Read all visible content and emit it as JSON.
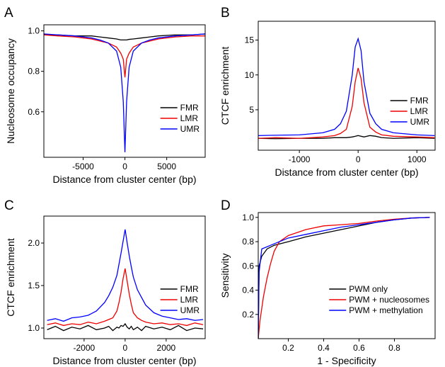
{
  "chart_data": [
    {
      "type": "line",
      "panel_label": "A",
      "x_label": "Distance from cluster center (bp)",
      "y_label": "Nucleosome occupancy",
      "x": [
        -9700,
        -8000,
        -6000,
        -4000,
        -3000,
        -2000,
        -1000,
        -500,
        -200,
        0,
        200,
        500,
        1000,
        2000,
        3000,
        4000,
        6000,
        8000,
        9700
      ],
      "series": [
        {
          "name": "FMR",
          "color": "#000000",
          "values": [
            0.98,
            0.98,
            0.975,
            0.975,
            0.97,
            0.965,
            0.96,
            0.955,
            0.955,
            0.955,
            0.955,
            0.958,
            0.96,
            0.965,
            0.97,
            0.975,
            0.98,
            0.98,
            0.985
          ]
        },
        {
          "name": "LMR",
          "color": "#ee0000",
          "values": [
            0.98,
            0.975,
            0.97,
            0.96,
            0.95,
            0.94,
            0.92,
            0.89,
            0.86,
            0.77,
            0.86,
            0.89,
            0.92,
            0.94,
            0.95,
            0.96,
            0.97,
            0.975,
            0.975
          ]
        },
        {
          "name": "UMR",
          "color": "#0000ff",
          "values": [
            0.985,
            0.98,
            0.975,
            0.965,
            0.955,
            0.94,
            0.9,
            0.82,
            0.65,
            0.4,
            0.65,
            0.82,
            0.9,
            0.94,
            0.955,
            0.965,
            0.975,
            0.98,
            0.985
          ]
        }
      ],
      "xlim": [
        -9700,
        9600
      ],
      "xticks": [
        -5000,
        0,
        5000
      ],
      "ylim": [
        0.375,
        1.03
      ],
      "yticks": [
        0.6,
        0.8,
        {
          "value": 1.0,
          "label": "1.0"
        }
      ],
      "legend": "lower right"
    },
    {
      "type": "line",
      "panel_label": "B",
      "x_label": "Distance from cluster center (bp)",
      "y_label": "CTCF enrichment",
      "x": [
        -1700,
        -1400,
        -1000,
        -600,
        -400,
        -300,
        -200,
        -100,
        -50,
        0,
        50,
        100,
        200,
        300,
        400,
        600,
        1000,
        1300
      ],
      "series": [
        {
          "name": "FMR",
          "color": "#000000",
          "values": [
            0.9,
            0.85,
            0.9,
            0.9,
            1.0,
            1.0,
            1.0,
            1.1,
            1.2,
            1.3,
            1.2,
            1.1,
            1.3,
            1.2,
            1.0,
            0.9,
            1.0,
            0.9
          ]
        },
        {
          "name": "LMR",
          "color": "#ee0000",
          "values": [
            0.9,
            1.0,
            0.9,
            1.1,
            1.3,
            1.6,
            2.2,
            5.5,
            9,
            11,
            9.5,
            6,
            2.5,
            1.8,
            1.4,
            1.2,
            1.1,
            1.0
          ]
        },
        {
          "name": "UMR",
          "color": "#0000ff",
          "values": [
            1.3,
            1.35,
            1.4,
            1.7,
            2.2,
            3.0,
            4.8,
            10,
            14,
            15.2,
            13.5,
            9,
            4.5,
            3.0,
            2.2,
            1.7,
            1.4,
            1.3
          ]
        }
      ],
      "xlim": [
        -1700,
        1310
      ],
      "xticks": [
        -1000,
        0,
        1000
      ],
      "ylim": [
        -0.8,
        17.7
      ],
      "yticks": [
        5,
        10,
        15
      ],
      "legend": "lower right"
    },
    {
      "type": "line",
      "panel_label": "C",
      "x_label": "Distance from cluster center (bp)",
      "y_label": "CTCF enrichment",
      "x": [
        -3800,
        -3400,
        -3000,
        -2600,
        -2200,
        -1800,
        -1400,
        -1000,
        -800,
        -600,
        -400,
        -300,
        -200,
        -100,
        0,
        100,
        200,
        300,
        400,
        600,
        800,
        1000,
        1400,
        1800,
        2200,
        2600,
        3000,
        3400,
        3800
      ],
      "series": [
        {
          "name": "FMR",
          "color": "#000000",
          "values": [
            0.98,
            1.02,
            0.97,
            1.01,
            0.99,
            1.03,
            0.98,
            1.0,
            1.02,
            0.97,
            1.01,
            1.0,
            1.03,
            1.02,
            1.05,
            1.01,
            0.99,
            1.02,
            0.98,
            1.01,
            0.97,
            1.02,
            0.99,
            1.01,
            0.98,
            1.03,
            0.97,
            1.0,
            0.99
          ]
        },
        {
          "name": "LMR",
          "color": "#ee0000",
          "values": [
            1.04,
            1.06,
            1.03,
            1.05,
            1.04,
            1.07,
            1.05,
            1.08,
            1.1,
            1.12,
            1.2,
            1.3,
            1.42,
            1.58,
            1.7,
            1.55,
            1.4,
            1.28,
            1.18,
            1.12,
            1.09,
            1.07,
            1.05,
            1.06,
            1.04,
            1.05,
            1.03,
            1.06,
            1.04
          ]
        },
        {
          "name": "UMR",
          "color": "#0000ff",
          "values": [
            1.09,
            1.11,
            1.08,
            1.12,
            1.13,
            1.15,
            1.2,
            1.3,
            1.38,
            1.48,
            1.62,
            1.75,
            1.88,
            2.02,
            2.16,
            2.0,
            1.85,
            1.72,
            1.6,
            1.45,
            1.36,
            1.27,
            1.18,
            1.14,
            1.12,
            1.1,
            1.11,
            1.09,
            1.1
          ]
        }
      ],
      "xlim": [
        -3960,
        3900
      ],
      "xticks": [
        -2000,
        0,
        2000
      ],
      "ylim": [
        0.875,
        2.317
      ],
      "yticks": [
        {
          "value": 1.0,
          "label": "1.0"
        },
        1.5,
        {
          "value": 2.0,
          "label": "2.0"
        }
      ],
      "legend": "lower right"
    },
    {
      "type": "line",
      "panel_label": "D",
      "x_label": "1 - Specificity",
      "y_label": "Sensitivity",
      "series": [
        {
          "name": "PWM only",
          "color": "#000000",
          "x": [
            0.03,
            0.035,
            0.05,
            0.08,
            0.12,
            0.2,
            0.3,
            0.4,
            0.5,
            0.6,
            0.7,
            0.8,
            0.9,
            1.0
          ],
          "values": [
            0.0,
            0.6,
            0.68,
            0.74,
            0.77,
            0.8,
            0.84,
            0.87,
            0.9,
            0.93,
            0.96,
            0.98,
            0.995,
            1.0
          ]
        },
        {
          "name": "PWM + nucleosomes",
          "color": "#ee0000",
          "x": [
            0.03,
            0.04,
            0.06,
            0.08,
            0.1,
            0.12,
            0.15,
            0.2,
            0.3,
            0.4,
            0.5,
            0.6,
            0.7,
            0.8,
            0.9,
            1.0
          ],
          "values": [
            0.0,
            0.15,
            0.35,
            0.5,
            0.62,
            0.72,
            0.8,
            0.85,
            0.9,
            0.93,
            0.94,
            0.95,
            0.97,
            0.985,
            0.995,
            1.0
          ]
        },
        {
          "name": "PWM + methylation",
          "color": "#0000ff",
          "x": [
            0.03,
            0.035,
            0.05,
            0.1,
            0.15,
            0.2,
            0.3,
            0.4,
            0.5,
            0.6,
            0.7,
            0.8,
            0.9,
            1.0
          ],
          "values": [
            0.0,
            0.55,
            0.74,
            0.77,
            0.8,
            0.83,
            0.86,
            0.89,
            0.92,
            0.94,
            0.96,
            0.98,
            0.995,
            1.0
          ]
        }
      ],
      "xlim": [
        0.03,
        1.03
      ],
      "xticks": [
        0.2,
        0.4,
        0.6,
        0.8
      ],
      "ylim": [
        0,
        1.04
      ],
      "yticks": [
        0.2,
        0.4,
        0.6,
        0.8,
        {
          "value": 1.0,
          "label": "1.0"
        }
      ],
      "legend": "lower right"
    }
  ]
}
